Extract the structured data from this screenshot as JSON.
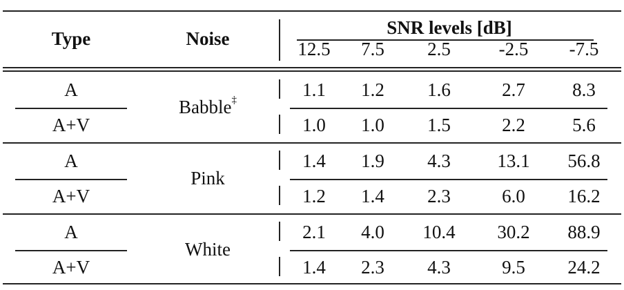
{
  "table": {
    "headers": {
      "type": "Type",
      "noise": "Noise",
      "snr_title": "SNR levels [dB]",
      "snr_levels": [
        "12.5",
        "7.5",
        "2.5",
        "-2.5",
        "-7.5"
      ]
    },
    "groups": [
      {
        "noise": "Babble",
        "noise_mark": "‡",
        "rows": [
          {
            "type": "A",
            "values": [
              "1.1",
              "1.2",
              "1.6",
              "2.7",
              "8.3"
            ]
          },
          {
            "type": "A+V",
            "values": [
              "1.0",
              "1.0",
              "1.5",
              "2.2",
              "5.6"
            ]
          }
        ]
      },
      {
        "noise": "Pink",
        "noise_mark": "",
        "rows": [
          {
            "type": "A",
            "values": [
              "1.4",
              "1.9",
              "4.3",
              "13.1",
              "56.8"
            ]
          },
          {
            "type": "A+V",
            "values": [
              "1.2",
              "1.4",
              "2.3",
              "6.0",
              "16.2"
            ]
          }
        ]
      },
      {
        "noise": "White",
        "noise_mark": "",
        "rows": [
          {
            "type": "A",
            "values": [
              "2.1",
              "4.0",
              "10.4",
              "30.2",
              "88.9"
            ]
          },
          {
            "type": "A+V",
            "values": [
              "1.4",
              "2.3",
              "4.3",
              "9.5",
              "24.2"
            ]
          }
        ]
      }
    ]
  }
}
